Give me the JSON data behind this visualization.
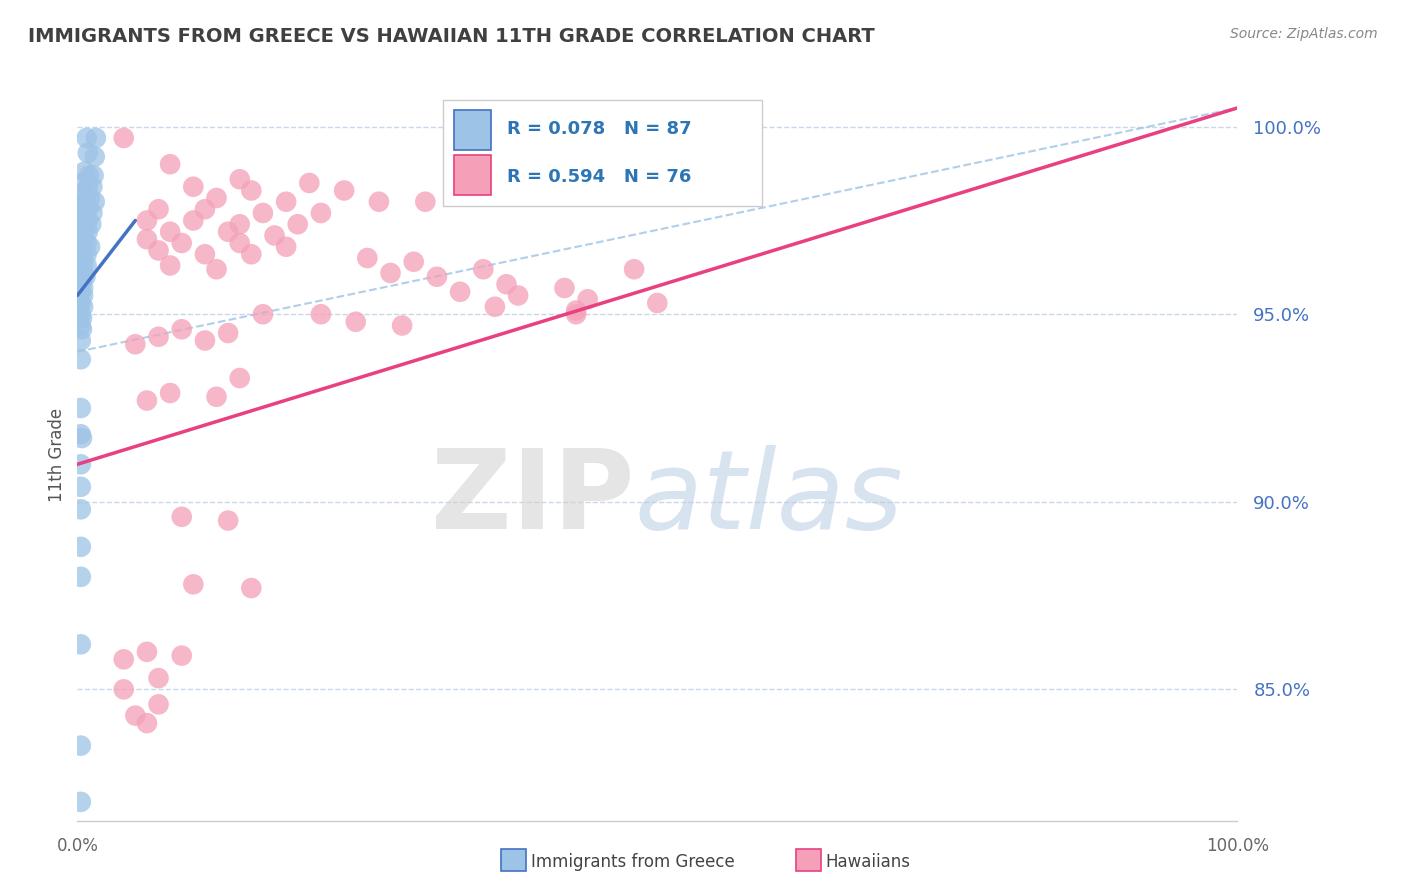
{
  "title": "IMMIGRANTS FROM GREECE VS HAWAIIAN 11TH GRADE CORRELATION CHART",
  "source": "Source: ZipAtlas.com",
  "ylabel": "11th Grade",
  "xmin": 0.0,
  "xmax": 1.0,
  "ymin": 0.815,
  "ymax": 1.01,
  "yticks": [
    0.85,
    0.9,
    0.95,
    1.0
  ],
  "ytick_labels": [
    "85.0%",
    "90.0%",
    "95.0%",
    "100.0%"
  ],
  "blue_line_x": [
    0.0,
    0.05
  ],
  "blue_line_y": [
    0.955,
    0.975
  ],
  "pink_line_x": [
    0.0,
    1.0
  ],
  "pink_line_y": [
    0.91,
    1.005
  ],
  "dashed_line_x": [
    0.0,
    1.0
  ],
  "dashed_line_y": [
    0.94,
    1.005
  ],
  "scatter_blue": [
    [
      0.008,
      0.997
    ],
    [
      0.016,
      0.997
    ],
    [
      0.009,
      0.993
    ],
    [
      0.015,
      0.992
    ],
    [
      0.006,
      0.988
    ],
    [
      0.01,
      0.987
    ],
    [
      0.014,
      0.987
    ],
    [
      0.005,
      0.985
    ],
    [
      0.009,
      0.984
    ],
    [
      0.013,
      0.984
    ],
    [
      0.004,
      0.982
    ],
    [
      0.007,
      0.981
    ],
    [
      0.011,
      0.981
    ],
    [
      0.015,
      0.98
    ],
    [
      0.003,
      0.979
    ],
    [
      0.006,
      0.978
    ],
    [
      0.009,
      0.978
    ],
    [
      0.013,
      0.977
    ],
    [
      0.003,
      0.976
    ],
    [
      0.006,
      0.975
    ],
    [
      0.009,
      0.975
    ],
    [
      0.012,
      0.974
    ],
    [
      0.003,
      0.973
    ],
    [
      0.006,
      0.972
    ],
    [
      0.009,
      0.972
    ],
    [
      0.003,
      0.97
    ],
    [
      0.005,
      0.969
    ],
    [
      0.008,
      0.969
    ],
    [
      0.011,
      0.968
    ],
    [
      0.003,
      0.967
    ],
    [
      0.005,
      0.966
    ],
    [
      0.008,
      0.966
    ],
    [
      0.003,
      0.964
    ],
    [
      0.005,
      0.963
    ],
    [
      0.008,
      0.963
    ],
    [
      0.003,
      0.961
    ],
    [
      0.005,
      0.96
    ],
    [
      0.007,
      0.96
    ],
    [
      0.003,
      0.958
    ],
    [
      0.005,
      0.957
    ],
    [
      0.003,
      0.956
    ],
    [
      0.005,
      0.955
    ],
    [
      0.003,
      0.953
    ],
    [
      0.005,
      0.952
    ],
    [
      0.003,
      0.95
    ],
    [
      0.004,
      0.949
    ],
    [
      0.003,
      0.947
    ],
    [
      0.004,
      0.946
    ],
    [
      0.003,
      0.943
    ],
    [
      0.003,
      0.938
    ],
    [
      0.003,
      0.925
    ],
    [
      0.003,
      0.918
    ],
    [
      0.004,
      0.917
    ],
    [
      0.003,
      0.91
    ],
    [
      0.003,
      0.904
    ],
    [
      0.003,
      0.898
    ],
    [
      0.003,
      0.888
    ],
    [
      0.003,
      0.88
    ],
    [
      0.003,
      0.862
    ],
    [
      0.003,
      0.835
    ],
    [
      0.003,
      0.82
    ]
  ],
  "scatter_pink": [
    [
      0.04,
      0.997
    ],
    [
      0.35,
      0.997
    ],
    [
      0.57,
      0.997
    ],
    [
      0.08,
      0.99
    ],
    [
      0.14,
      0.986
    ],
    [
      0.2,
      0.985
    ],
    [
      0.1,
      0.984
    ],
    [
      0.15,
      0.983
    ],
    [
      0.23,
      0.983
    ],
    [
      0.12,
      0.981
    ],
    [
      0.18,
      0.98
    ],
    [
      0.26,
      0.98
    ],
    [
      0.3,
      0.98
    ],
    [
      0.07,
      0.978
    ],
    [
      0.11,
      0.978
    ],
    [
      0.16,
      0.977
    ],
    [
      0.21,
      0.977
    ],
    [
      0.06,
      0.975
    ],
    [
      0.1,
      0.975
    ],
    [
      0.14,
      0.974
    ],
    [
      0.19,
      0.974
    ],
    [
      0.08,
      0.972
    ],
    [
      0.13,
      0.972
    ],
    [
      0.17,
      0.971
    ],
    [
      0.06,
      0.97
    ],
    [
      0.09,
      0.969
    ],
    [
      0.14,
      0.969
    ],
    [
      0.18,
      0.968
    ],
    [
      0.07,
      0.967
    ],
    [
      0.11,
      0.966
    ],
    [
      0.15,
      0.966
    ],
    [
      0.25,
      0.965
    ],
    [
      0.29,
      0.964
    ],
    [
      0.08,
      0.963
    ],
    [
      0.12,
      0.962
    ],
    [
      0.27,
      0.961
    ],
    [
      0.31,
      0.96
    ],
    [
      0.37,
      0.958
    ],
    [
      0.42,
      0.957
    ],
    [
      0.33,
      0.956
    ],
    [
      0.38,
      0.955
    ],
    [
      0.44,
      0.954
    ],
    [
      0.5,
      0.953
    ],
    [
      0.36,
      0.952
    ],
    [
      0.43,
      0.951
    ],
    [
      0.16,
      0.95
    ],
    [
      0.21,
      0.95
    ],
    [
      0.24,
      0.948
    ],
    [
      0.28,
      0.947
    ],
    [
      0.09,
      0.946
    ],
    [
      0.13,
      0.945
    ],
    [
      0.07,
      0.944
    ],
    [
      0.11,
      0.943
    ],
    [
      0.05,
      0.942
    ],
    [
      0.35,
      0.962
    ],
    [
      0.48,
      0.962
    ],
    [
      0.43,
      0.95
    ],
    [
      0.14,
      0.933
    ],
    [
      0.08,
      0.929
    ],
    [
      0.12,
      0.928
    ],
    [
      0.06,
      0.927
    ],
    [
      0.09,
      0.896
    ],
    [
      0.13,
      0.895
    ],
    [
      0.1,
      0.878
    ],
    [
      0.15,
      0.877
    ],
    [
      0.06,
      0.86
    ],
    [
      0.09,
      0.859
    ],
    [
      0.04,
      0.858
    ],
    [
      0.07,
      0.853
    ],
    [
      0.04,
      0.85
    ],
    [
      0.07,
      0.846
    ],
    [
      0.05,
      0.843
    ],
    [
      0.06,
      0.841
    ]
  ],
  "blue_line_color": "#4472c4",
  "pink_line_color": "#e84080",
  "blue_scatter_color": "#9dc3e6",
  "pink_scatter_color": "#f4a0b8",
  "dashed_line_color": "#9dc3e6",
  "grid_color": "#c8d8e8",
  "title_color": "#404040",
  "watermark_zip_color": "#d0d0d0",
  "watermark_atlas_color": "#b8cce4",
  "legend_color": "#2e75b6",
  "background_color": "#ffffff"
}
